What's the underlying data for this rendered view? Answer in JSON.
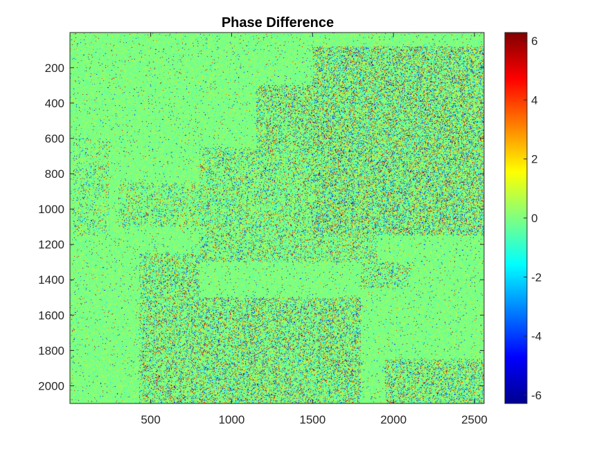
{
  "chart_data": {
    "type": "heatmap",
    "title": "Phase Difference",
    "xlabel": "",
    "ylabel": "",
    "xlim": [
      1,
      2560
    ],
    "ylim": [
      1,
      2100
    ],
    "y_reversed": true,
    "x_ticks": [
      500,
      1000,
      1500,
      2000,
      2500
    ],
    "y_ticks": [
      200,
      400,
      600,
      800,
      1000,
      1200,
      1400,
      1600,
      1800,
      2000
    ],
    "x_tick_labels": [
      "500",
      "1000",
      "1500",
      "2000",
      "2500"
    ],
    "y_tick_labels": [
      "200",
      "400",
      "600",
      "800",
      "1000",
      "1200",
      "1400",
      "1600",
      "1800",
      "2000"
    ],
    "colorbar": {
      "colormap": "jet",
      "range": [
        -6.2832,
        6.2832
      ],
      "ticks": [
        -6,
        -4,
        -2,
        0,
        2,
        4,
        6
      ],
      "tick_labels": [
        "-6",
        "-4",
        "-2",
        "0",
        "2",
        "4",
        "6"
      ]
    },
    "noisy_regions": [
      {
        "x": [
          1500,
          2560
        ],
        "y": [
          80,
          1150
        ],
        "intensity": 0.85
      },
      {
        "x": [
          1150,
          1700
        ],
        "y": [
          300,
          700
        ],
        "intensity": 0.7
      },
      {
        "x": [
          800,
          1900
        ],
        "y": [
          650,
          1300
        ],
        "intensity": 0.55
      },
      {
        "x": [
          300,
          800
        ],
        "y": [
          850,
          1100
        ],
        "intensity": 0.45
      },
      {
        "x": [
          430,
          800
        ],
        "y": [
          1250,
          2100
        ],
        "intensity": 0.65
      },
      {
        "x": [
          750,
          1800
        ],
        "y": [
          1500,
          2100
        ],
        "intensity": 0.75
      },
      {
        "x": [
          1950,
          2560
        ],
        "y": [
          1850,
          2100
        ],
        "intensity": 0.7
      },
      {
        "x": [
          2100,
          2560
        ],
        "y": [
          80,
          500
        ],
        "intensity": 0.8
      },
      {
        "x": [
          20,
          250
        ],
        "y": [
          600,
          1150
        ],
        "intensity": 0.35
      },
      {
        "x": [
          1800,
          2100
        ],
        "y": [
          1300,
          1450
        ],
        "intensity": 0.5
      }
    ],
    "background_value": 0
  }
}
